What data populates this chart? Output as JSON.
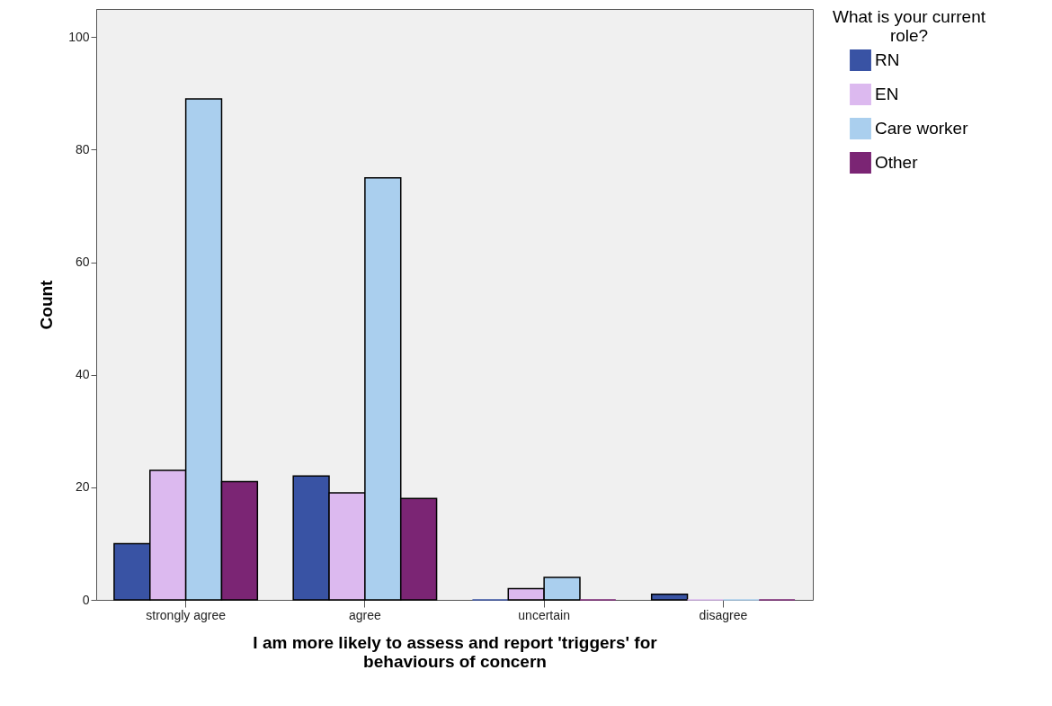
{
  "chart_data": {
    "type": "bar",
    "xlabel": "I am more likely to assess and report 'triggers' for behaviours of concern",
    "ylabel": "Count",
    "legend_title": "What is your current role?",
    "categories": [
      "strongly agree",
      "agree",
      "uncertain",
      "disagree"
    ],
    "series": [
      {
        "name": "RN",
        "color": "#3953a4",
        "values": [
          10,
          22,
          0,
          1
        ]
      },
      {
        "name": "EN",
        "color": "#dcb9ef",
        "values": [
          23,
          19,
          2,
          0
        ]
      },
      {
        "name": "Care worker",
        "color": "#aacfee",
        "values": [
          89,
          75,
          4,
          0
        ]
      },
      {
        "name": "Other",
        "color": "#7b2574",
        "values": [
          21,
          18,
          0,
          0
        ]
      }
    ],
    "ylim": [
      0,
      105
    ],
    "yticks": [
      0,
      20,
      40,
      60,
      80,
      100
    ],
    "grid": false,
    "legend": "top right"
  }
}
